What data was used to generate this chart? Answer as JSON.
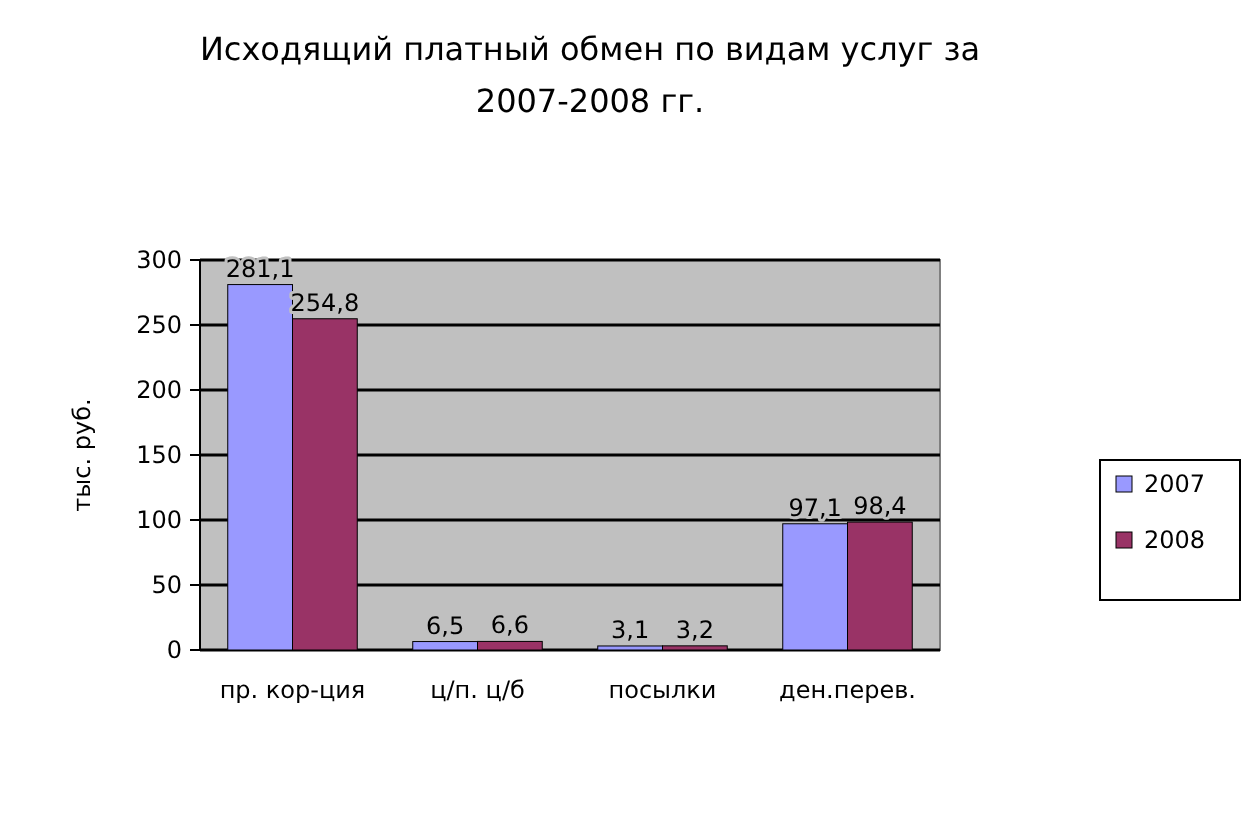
{
  "chart_data": {
    "type": "bar",
    "title": "Исходящий платный обмен по видам услуг за 2007-2008 гг.",
    "ylabel": "тыс. руб.",
    "categories": [
      "пр. кор-ция",
      "ц/п. ц/б",
      "посылки",
      "ден.перев."
    ],
    "series": [
      {
        "name": "2007",
        "color": "#9999ff",
        "values": [
          281.1,
          6.5,
          3.1,
          97.1
        ],
        "value_labels": [
          "281,1",
          "6,5",
          "3,1",
          "97,1"
        ]
      },
      {
        "name": "2008",
        "color": "#993366",
        "values": [
          254.8,
          6.6,
          3.2,
          98.4
        ],
        "value_labels": [
          "254,8",
          "6,6",
          "3,2",
          "98,4"
        ]
      }
    ],
    "ylim": [
      0,
      300
    ],
    "yticks": [
      0,
      50,
      100,
      150,
      200,
      250,
      300
    ],
    "grid": "y",
    "legend": "right"
  }
}
